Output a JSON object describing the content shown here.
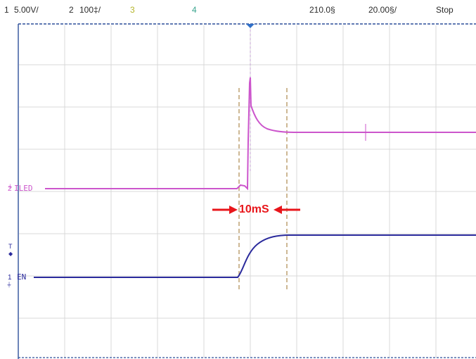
{
  "header": {
    "ch1_num": "1",
    "ch1_scale": "5.00V/",
    "ch2_num": "2",
    "ch2_scale": "100‡/",
    "ch3_num": "3",
    "ch4_num": "4",
    "timebase_delay": "210.0§",
    "timebase_scale": "20.00§/",
    "run_state": "Stop"
  },
  "traces": {
    "iled": {
      "label": "ILED",
      "channel": "2"
    },
    "en": {
      "label": "EN",
      "channel": "1"
    }
  },
  "annotation": {
    "text": "10mS"
  },
  "colors": {
    "background": "#ffffff",
    "grid": "#d8d8d8",
    "grid_frame": "#2d4f9a",
    "ch1_header": "#2b2b2b",
    "ch3_header": "#b5b52a",
    "ch4_header": "#3aa58e",
    "iled_trace": "#cc55cc",
    "en_trace": "#2a2a9c",
    "cursor": "#b89a66",
    "annotation": "#e8161b",
    "trigger": "#2f6fc8"
  },
  "icons": {
    "trigger_marker": "triangle-down",
    "annotation_left": "arrow-right",
    "annotation_right": "arrow-left"
  }
}
